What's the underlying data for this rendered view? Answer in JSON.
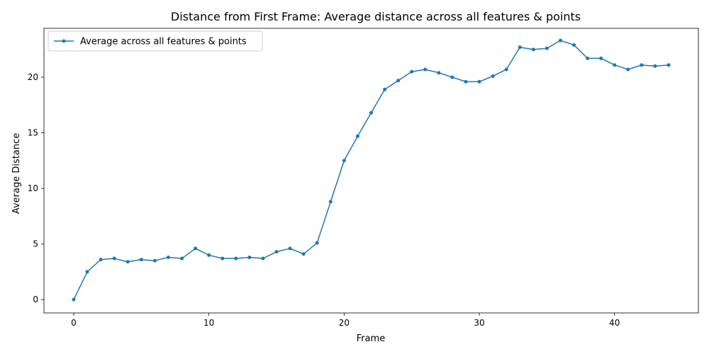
{
  "chart_data": {
    "type": "line",
    "title": "Distance from First Frame: Average distance across all features & points",
    "xlabel": "Frame",
    "ylabel": "Average Distance",
    "xlim": [
      -2.2,
      46.2
    ],
    "ylim": [
      -1.2,
      24.4
    ],
    "xticks": [
      0,
      10,
      20,
      30,
      40
    ],
    "yticks": [
      0,
      5,
      10,
      15,
      20
    ],
    "grid": false,
    "legend_position": "top-left",
    "series": [
      {
        "name": "Average across all features & points",
        "color": "#1f77b4",
        "marker": "circle",
        "x": [
          0,
          1,
          2,
          3,
          4,
          5,
          6,
          7,
          8,
          9,
          10,
          11,
          12,
          13,
          14,
          15,
          16,
          17,
          18,
          19,
          20,
          21,
          22,
          23,
          24,
          25,
          26,
          27,
          28,
          29,
          30,
          31,
          32,
          33,
          34,
          35,
          36,
          37,
          38,
          39,
          40,
          41,
          42,
          43,
          44
        ],
        "y": [
          0,
          2.5,
          3.6,
          3.7,
          3.4,
          3.6,
          3.5,
          3.8,
          3.7,
          4.6,
          4.0,
          3.7,
          3.7,
          3.8,
          3.7,
          4.3,
          4.6,
          4.1,
          5.1,
          8.8,
          12.5,
          14.7,
          16.8,
          18.9,
          19.7,
          20.5,
          20.7,
          20.4,
          20.0,
          19.6,
          19.6,
          20.1,
          20.7,
          22.7,
          22.5,
          22.6,
          23.3,
          22.9,
          21.7,
          21.7,
          21.1,
          20.7,
          21.1,
          21.0,
          21.1
        ]
      }
    ]
  }
}
